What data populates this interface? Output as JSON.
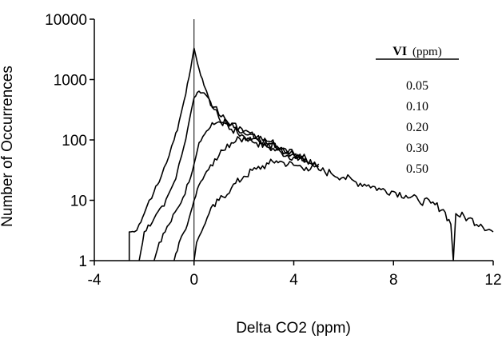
{
  "chart_data": {
    "type": "line",
    "title": "",
    "xlabel": "Delta CO2 (ppm)",
    "ylabel": "Number of Occurrences",
    "xlim": [
      -4,
      12
    ],
    "ylim": [
      1,
      10000
    ],
    "yscale": "log",
    "xticks": [
      "-4",
      "0",
      "4",
      "8",
      "12"
    ],
    "yticks": [
      "1",
      "10",
      "100",
      "1000",
      "10000"
    ],
    "grid": false,
    "vertical_reference_line_x": 0,
    "legend": {
      "title": "VI",
      "title_unit": "(ppm)",
      "placement": "top-right",
      "entries": [
        "0.05",
        "0.10",
        "0.20",
        "0.30",
        "0.50"
      ]
    },
    "series": [
      {
        "name": "0.05",
        "points": [
          [
            -2.6,
            1
          ],
          [
            -2.6,
            3
          ],
          [
            -2.4,
            3
          ],
          [
            -2.2,
            4
          ],
          [
            -2.0,
            6
          ],
          [
            -1.8,
            10
          ],
          [
            -1.6,
            14
          ],
          [
            -1.4,
            20
          ],
          [
            -1.2,
            35
          ],
          [
            -1.0,
            55
          ],
          [
            -0.8,
            100
          ],
          [
            -0.6,
            200
          ],
          [
            -0.4,
            450
          ],
          [
            -0.2,
            1100
          ],
          [
            0,
            3300
          ],
          [
            0.2,
            1500
          ],
          [
            0.4,
            800
          ],
          [
            0.6,
            480
          ],
          [
            0.8,
            320
          ],
          [
            1.0,
            230
          ],
          [
            1.5,
            150
          ],
          [
            2.0,
            115
          ],
          [
            2.5,
            90
          ],
          [
            3.0,
            75
          ],
          [
            3.5,
            62
          ],
          [
            4.0,
            52
          ],
          [
            4.5,
            44
          ],
          [
            5.0,
            36
          ]
        ]
      },
      {
        "name": "0.10",
        "points": [
          [
            -2.2,
            1
          ],
          [
            -2.0,
            3
          ],
          [
            -1.6,
            5
          ],
          [
            -1.2,
            8
          ],
          [
            -0.8,
            20
          ],
          [
            -0.6,
            40
          ],
          [
            -0.4,
            80
          ],
          [
            -0.2,
            200
          ],
          [
            0,
            500
          ],
          [
            0.2,
            640
          ],
          [
            0.4,
            600
          ],
          [
            0.6,
            480
          ],
          [
            0.8,
            350
          ],
          [
            1.0,
            260
          ],
          [
            1.5,
            180
          ],
          [
            2.0,
            140
          ],
          [
            2.5,
            110
          ],
          [
            3.0,
            88
          ],
          [
            3.5,
            70
          ],
          [
            4.0,
            58
          ],
          [
            4.5,
            48
          ],
          [
            5.0,
            40
          ]
        ]
      },
      {
        "name": "0.20",
        "points": [
          [
            -1.6,
            1
          ],
          [
            -1.4,
            2
          ],
          [
            -1.0,
            4
          ],
          [
            -0.6,
            8
          ],
          [
            -0.2,
            20
          ],
          [
            0,
            40
          ],
          [
            0.2,
            90
          ],
          [
            0.5,
            140
          ],
          [
            0.8,
            180
          ],
          [
            1.0,
            200
          ],
          [
            1.3,
            190
          ],
          [
            1.6,
            160
          ],
          [
            2.0,
            130
          ],
          [
            2.5,
            105
          ],
          [
            3.0,
            85
          ],
          [
            3.5,
            70
          ],
          [
            4.0,
            56
          ],
          [
            4.5,
            48
          ]
        ]
      },
      {
        "name": "0.30",
        "points": [
          [
            -0.8,
            1
          ],
          [
            -0.6,
            2
          ],
          [
            -0.4,
            3
          ],
          [
            -0.2,
            5
          ],
          [
            0,
            10
          ],
          [
            0.2,
            18
          ],
          [
            0.5,
            30
          ],
          [
            1.0,
            55
          ],
          [
            1.5,
            90
          ],
          [
            2.0,
            110
          ],
          [
            2.5,
            105
          ],
          [
            3.0,
            95
          ],
          [
            3.5,
            75
          ],
          [
            4.0,
            60
          ],
          [
            4.5,
            50
          ]
        ]
      },
      {
        "name": "0.50",
        "points": [
          [
            0,
            1
          ],
          [
            0.1,
            2
          ],
          [
            0.3,
            3
          ],
          [
            0.6,
            6
          ],
          [
            1.0,
            10
          ],
          [
            1.5,
            16
          ],
          [
            2.0,
            25
          ],
          [
            2.5,
            33
          ],
          [
            3.0,
            40
          ],
          [
            3.3,
            45
          ],
          [
            3.6,
            42
          ],
          [
            4.0,
            38
          ],
          [
            4.5,
            35
          ],
          [
            5.0,
            32
          ],
          [
            5.5,
            28
          ],
          [
            6.0,
            24
          ],
          [
            6.5,
            20
          ],
          [
            7.0,
            18
          ],
          [
            7.5,
            15
          ],
          [
            8.0,
            14
          ],
          [
            8.5,
            12
          ],
          [
            9.0,
            10
          ],
          [
            9.5,
            9
          ],
          [
            10.0,
            7
          ],
          [
            10.3,
            4
          ],
          [
            10.4,
            1
          ],
          [
            10.5,
            6
          ],
          [
            11.0,
            5
          ],
          [
            11.5,
            4
          ],
          [
            12.0,
            3
          ]
        ]
      }
    ]
  }
}
